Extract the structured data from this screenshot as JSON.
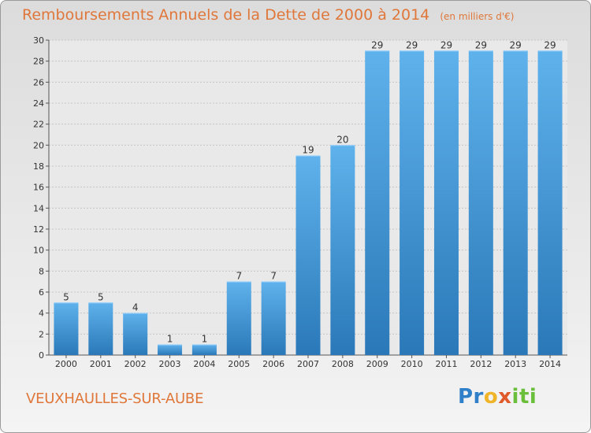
{
  "title": "Remboursements Annuels de la Dette de 2000 à 2014",
  "unit": "(en milliers d'€)",
  "commune": "VEUXHAULLES-SUR-AUBE",
  "logo_text": "Proxiti",
  "colors": {
    "bar_light": "#5fb2ec",
    "bar_dark": "#2a78b8",
    "title": "#e0773a"
  },
  "chart_data": {
    "type": "bar",
    "categories": [
      "2000",
      "2001",
      "2002",
      "2003",
      "2004",
      "2005",
      "2006",
      "2007",
      "2008",
      "2009",
      "2010",
      "2011",
      "2012",
      "2013",
      "2014"
    ],
    "values": [
      5,
      5,
      4,
      1,
      1,
      7,
      7,
      19,
      20,
      29,
      29,
      29,
      29,
      29,
      29
    ],
    "ylim": [
      0,
      30
    ],
    "yticks": [
      0,
      2,
      4,
      6,
      8,
      10,
      12,
      14,
      16,
      18,
      20,
      22,
      24,
      26,
      28,
      30
    ],
    "grid": true
  }
}
